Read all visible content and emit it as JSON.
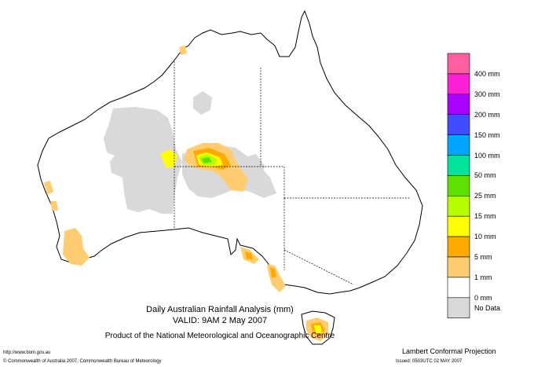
{
  "map": {
    "title": "Daily Australian Rainfall Analysis (mm)",
    "valid": "VALID: 9AM  2 May 2007",
    "product": "Product of the National Meteorological and Oceanographic Centre",
    "projection": "Lambert Conformal Projection",
    "url": "http://www.bom.gov.au",
    "copyright": "© Commonwealth of Australia 2007, Commonwealth Bureau of Meteorology",
    "issued": "Issued: 0503UTC 02 MAY 2007"
  },
  "legend": {
    "items": [
      {
        "label": "400 mm",
        "color": "#ff5fa0"
      },
      {
        "label": "300 mm",
        "color": "#ff1fd6"
      },
      {
        "label": "200 mm",
        "color": "#aa00ff"
      },
      {
        "label": "150 mm",
        "color": "#3f4cff"
      },
      {
        "label": "100 mm",
        "color": "#00a6ff"
      },
      {
        "label": "50 mm",
        "color": "#00e39a"
      },
      {
        "label": "25 mm",
        "color": "#5ee000"
      },
      {
        "label": "15 mm",
        "color": "#b7ff00"
      },
      {
        "label": "10 mm",
        "color": "#ffff00"
      },
      {
        "label": "5 mm",
        "color": "#ffaa00"
      },
      {
        "label": "1 mm",
        "color": "#ffcc70"
      },
      {
        "label": "0 mm",
        "color": "#ffffff"
      },
      {
        "label": "No Data",
        "color": "#d9d9d9"
      }
    ]
  }
}
